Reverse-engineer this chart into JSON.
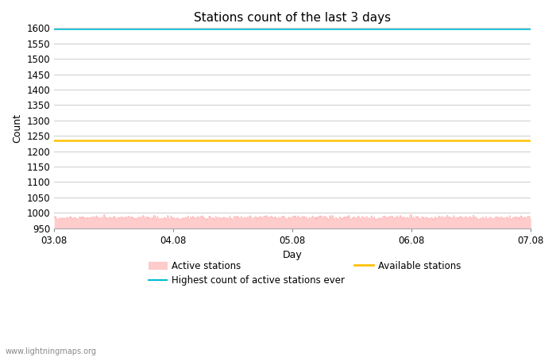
{
  "title": "Stations count of the last 3 days",
  "xlabel": "Day",
  "ylabel": "Count",
  "ylim": [
    950,
    1600
  ],
  "ytick_start": 950,
  "ytick_end": 1600,
  "ytick_step": 50,
  "x_ticks": [
    0,
    1,
    2,
    3,
    4
  ],
  "x_tick_labels": [
    "03.08",
    "04.08",
    "05.08",
    "06.08",
    "07.08"
  ],
  "active_stations_mean": 983,
  "active_stations_noise": 8,
  "highest_ever_value": 1596,
  "available_stations_value": 1234,
  "active_fill_color": "#ffcccc",
  "active_line_color": "#ffbbbb",
  "highest_ever_color": "#00bcd4",
  "available_color": "#ffc107",
  "bg_color": "#ffffff",
  "grid_color": "#cccccc",
  "watermark": "www.lightningmaps.org",
  "title_fontsize": 11,
  "axis_label_fontsize": 9,
  "tick_fontsize": 8.5,
  "legend_fontsize": 8.5
}
